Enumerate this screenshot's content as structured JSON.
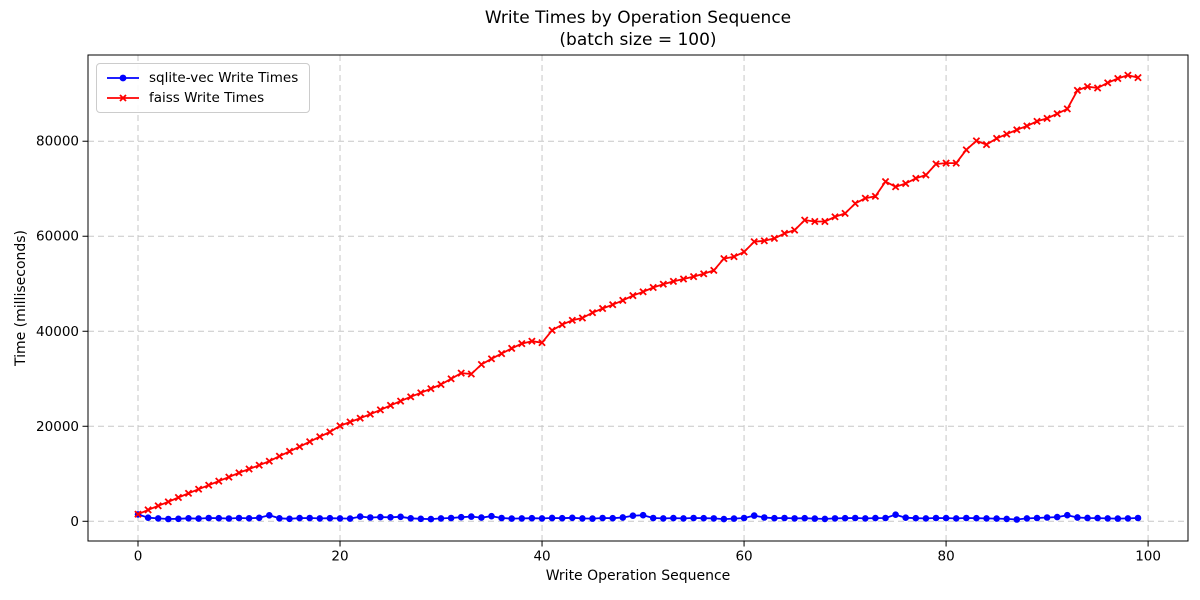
{
  "chart_data": {
    "type": "line",
    "title": "Write Times by Operation Sequence",
    "subtitle": "(batch size = 100)",
    "xlabel": "Write Operation Sequence",
    "ylabel": "Time (milliseconds)",
    "xlim": [
      -4.95,
      103.95
    ],
    "ylim": [
      -4150,
      98150
    ],
    "xticks": [
      0,
      20,
      40,
      60,
      80,
      100
    ],
    "yticks": [
      0,
      20000,
      40000,
      60000,
      80000
    ],
    "grid": true,
    "grid_color": "#c7c7c7",
    "grid_style": "dashed",
    "legend_position": "upper left",
    "x": [
      0,
      1,
      2,
      3,
      4,
      5,
      6,
      7,
      8,
      9,
      10,
      11,
      12,
      13,
      14,
      15,
      16,
      17,
      18,
      19,
      20,
      21,
      22,
      23,
      24,
      25,
      26,
      27,
      28,
      29,
      30,
      31,
      32,
      33,
      34,
      35,
      36,
      37,
      38,
      39,
      40,
      41,
      42,
      43,
      44,
      45,
      46,
      47,
      48,
      49,
      50,
      51,
      52,
      53,
      54,
      55,
      56,
      57,
      58,
      59,
      60,
      61,
      62,
      63,
      64,
      65,
      66,
      67,
      68,
      69,
      70,
      71,
      72,
      73,
      74,
      75,
      76,
      77,
      78,
      79,
      80,
      81,
      82,
      83,
      84,
      85,
      86,
      87,
      88,
      89,
      90,
      91,
      92,
      93,
      94,
      95,
      96,
      97,
      98,
      99
    ],
    "series": [
      {
        "id": "sqlite-vec",
        "name": "sqlite-vec Write Times",
        "color": "#0000ff",
        "marker": "circle",
        "values": [
          1450,
          750,
          600,
          480,
          520,
          620,
          560,
          700,
          640,
          580,
          690,
          630,
          740,
          1250,
          620,
          520,
          660,
          700,
          610,
          640,
          600,
          560,
          980,
          800,
          880,
          840,
          950,
          620,
          520,
          470,
          600,
          700,
          870,
          980,
          780,
          1080,
          700,
          560,
          610,
          650,
          600,
          700,
          650,
          740,
          610,
          560,
          700,
          640,
          800,
          1180,
          1290,
          700,
          600,
          660,
          600,
          700,
          650,
          600,
          460,
          560,
          700,
          1190,
          800,
          650,
          700,
          610,
          650,
          560,
          510,
          600,
          650,
          700,
          610,
          660,
          700,
          1380,
          760,
          650,
          600,
          700,
          660,
          600,
          700,
          650,
          600,
          560,
          510,
          380,
          600,
          700,
          790,
          890,
          1280,
          800,
          700,
          660,
          600,
          560,
          610,
          700
        ]
      },
      {
        "id": "faiss",
        "name": "faiss Write Times",
        "color": "#ff0000",
        "marker": "x",
        "values": [
          1500,
          2400,
          3250,
          4100,
          5000,
          5900,
          6750,
          7600,
          8450,
          9300,
          10200,
          11000,
          11800,
          12650,
          13700,
          14700,
          15700,
          16750,
          17800,
          18800,
          20100,
          20900,
          21700,
          22550,
          23450,
          24400,
          25300,
          26200,
          27050,
          27900,
          28800,
          30000,
          31200,
          31000,
          33000,
          34200,
          35300,
          36400,
          37400,
          37900,
          37600,
          40200,
          41400,
          42300,
          42800,
          43900,
          44800,
          45600,
          46500,
          47500,
          48300,
          49200,
          49900,
          50500,
          51000,
          51500,
          52100,
          52800,
          55300,
          55700,
          56700,
          58850,
          59050,
          59550,
          60600,
          61300,
          63400,
          63100,
          63100,
          64100,
          64800,
          66900,
          68000,
          68400,
          71500,
          70400,
          71100,
          72200,
          72900,
          75200,
          75400,
          75400,
          78200,
          80100,
          79300,
          80600,
          81500,
          82400,
          83200,
          84200,
          84800,
          85800,
          86800,
          90700,
          91500,
          91200,
          92300,
          93200,
          93900,
          93400
        ]
      }
    ]
  }
}
